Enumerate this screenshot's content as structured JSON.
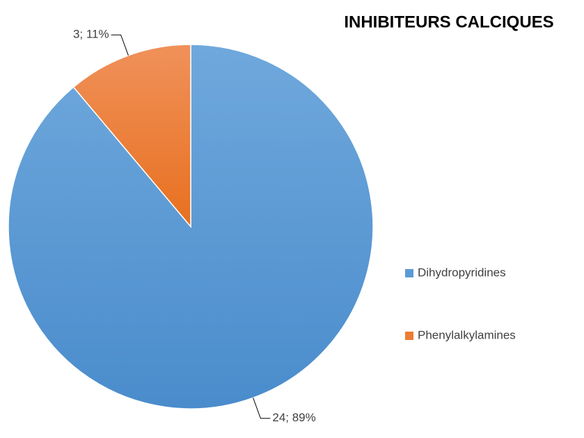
{
  "chart_data": {
    "type": "pie",
    "title": "INHIBITEURS CALCIQUES",
    "categories": [
      "Dihydropyridines",
      "Phenylalkylamines"
    ],
    "values": [
      24,
      3
    ],
    "value_labels": [
      "24; 89%",
      "3; 11%"
    ],
    "colors": [
      "#5b9bd5",
      "#ed7d31"
    ],
    "legend": "right"
  }
}
